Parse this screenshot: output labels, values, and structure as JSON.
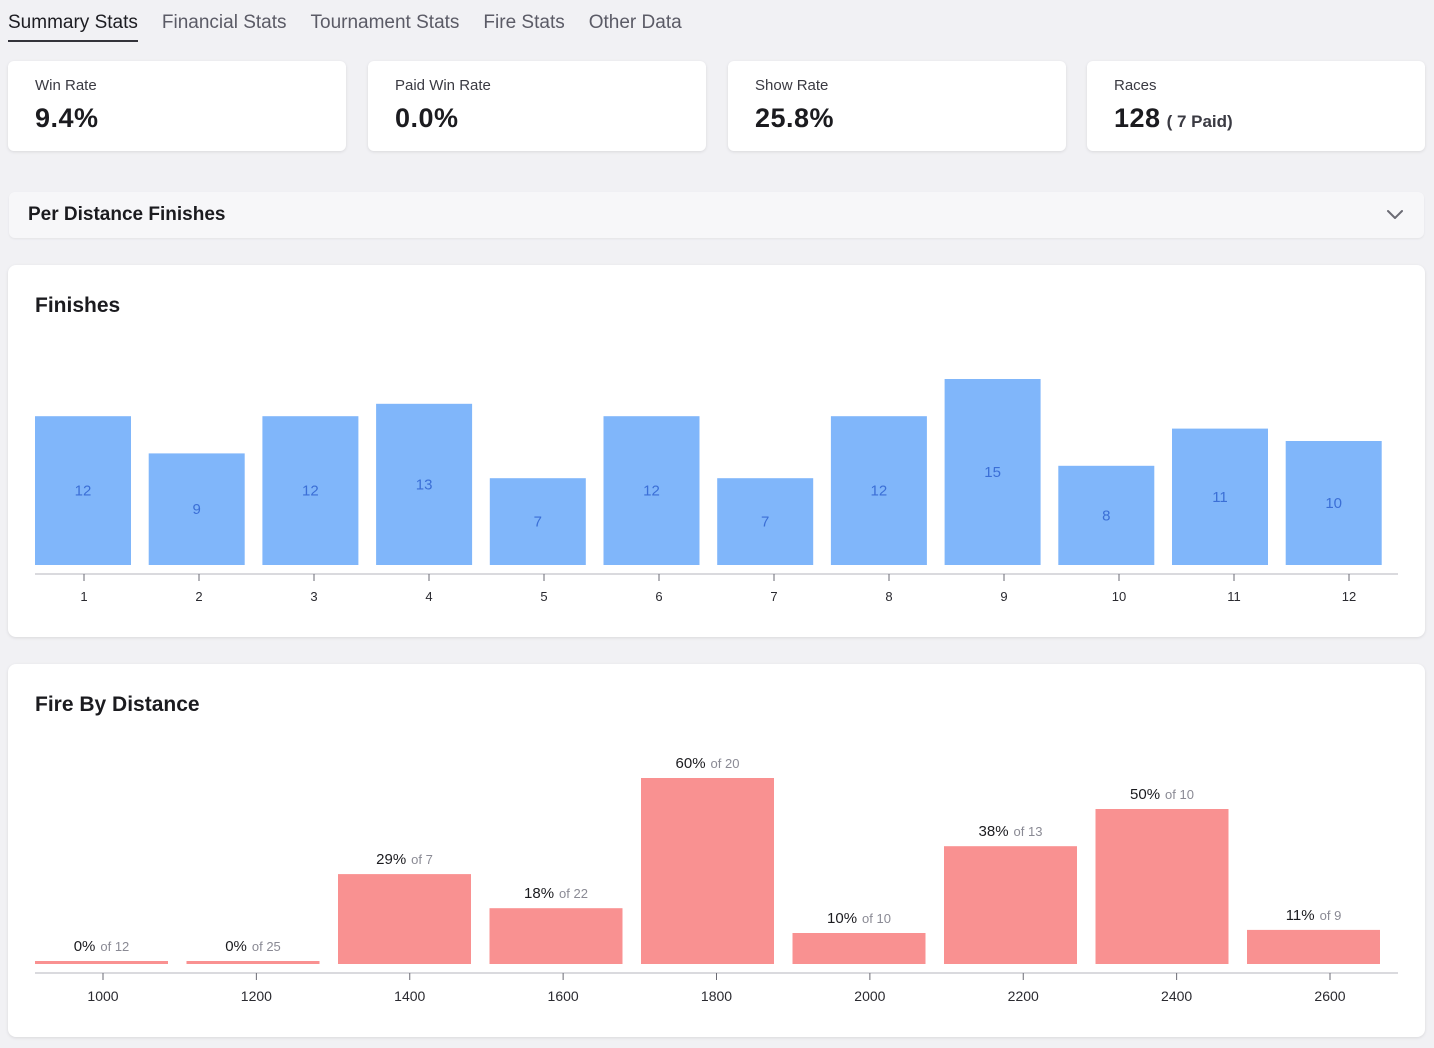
{
  "tabs": [
    {
      "label": "Summary Stats",
      "active": true
    },
    {
      "label": "Financial Stats",
      "active": false
    },
    {
      "label": "Tournament Stats",
      "active": false
    },
    {
      "label": "Fire Stats",
      "active": false
    },
    {
      "label": "Other Data",
      "active": false
    }
  ],
  "stats": {
    "win_rate": {
      "label": "Win Rate",
      "value": "9.4%"
    },
    "paid_win_rate": {
      "label": "Paid Win Rate",
      "value": "0.0%"
    },
    "show_rate": {
      "label": "Show Rate",
      "value": "25.8%"
    },
    "races": {
      "label": "Races",
      "value": "128",
      "sub": "( 7 Paid)"
    }
  },
  "accordion": {
    "title": "Per Distance Finishes",
    "icon": "chevron-down-icon"
  },
  "finishes_panel": {
    "title": "Finishes"
  },
  "fire_panel": {
    "title": "Fire By Distance"
  },
  "colors": {
    "finish_bar": "#80b6fa",
    "finish_label": "#3b6fd6",
    "fire_bar": "#f99191"
  },
  "chart_data": [
    {
      "type": "bar",
      "title": "Finishes",
      "categories": [
        "1",
        "2",
        "3",
        "4",
        "5",
        "6",
        "7",
        "8",
        "9",
        "10",
        "11",
        "12"
      ],
      "values": [
        12,
        9,
        12,
        13,
        7,
        12,
        7,
        12,
        15,
        8,
        11,
        10
      ],
      "ylim": [
        0,
        15
      ],
      "grid": false
    },
    {
      "type": "bar",
      "title": "Fire By Distance",
      "categories": [
        "1000",
        "1200",
        "1400",
        "1600",
        "1800",
        "2000",
        "2200",
        "2400",
        "2600"
      ],
      "values": [
        0,
        0,
        29,
        18,
        60,
        10,
        38,
        50,
        11
      ],
      "totals": [
        12,
        25,
        7,
        22,
        20,
        10,
        13,
        10,
        9
      ],
      "ylim": [
        0,
        60
      ],
      "grid": false
    }
  ]
}
